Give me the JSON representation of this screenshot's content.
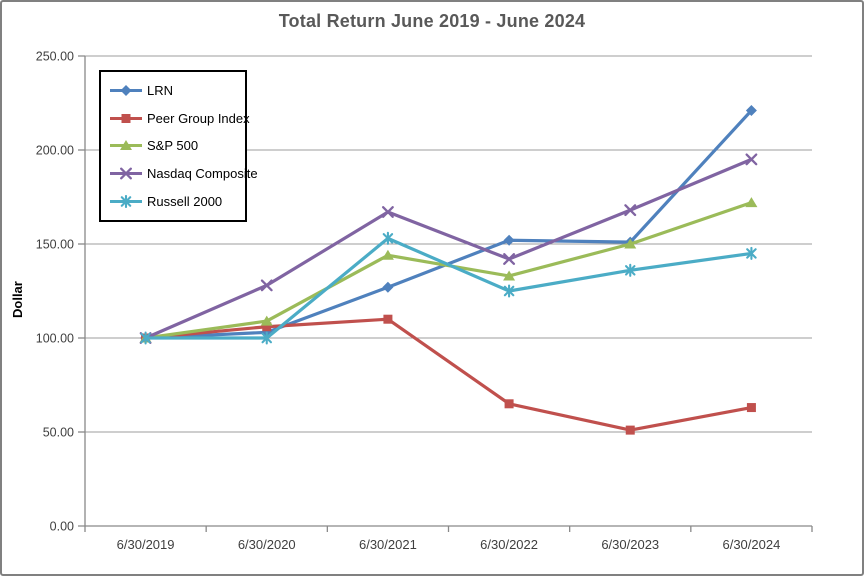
{
  "title": "Total Return June 2019 - June 2024",
  "chart_data": {
    "type": "line",
    "title": "Total Return June 2019 - June 2024",
    "ylabel": "Dollar",
    "xlabel": "",
    "ylim": [
      0,
      250
    ],
    "ytick_step": 50,
    "ytick_decimals": 2,
    "grid": true,
    "legend_position": "top-left",
    "categories": [
      "6/30/2019",
      "6/30/2020",
      "6/30/2021",
      "6/30/2022",
      "6/30/2023",
      "6/30/2024"
    ],
    "series": [
      {
        "name": "LRN",
        "color": "#4F81BD",
        "marker": "diamond",
        "values": [
          100,
          103,
          127,
          152,
          151,
          221
        ]
      },
      {
        "name": "Peer Group Index",
        "color": "#C0504D",
        "marker": "square",
        "values": [
          100,
          106,
          110,
          65,
          51,
          63
        ]
      },
      {
        "name": "S&P 500",
        "color": "#9BBB59",
        "marker": "triangle",
        "values": [
          100,
          109,
          144,
          133,
          150,
          172
        ]
      },
      {
        "name": "Nasdaq Composite",
        "color": "#8064A2",
        "marker": "x",
        "values": [
          100,
          128,
          167,
          142,
          168,
          195
        ]
      },
      {
        "name": "Russell 2000",
        "color": "#4BACC6",
        "marker": "asterisk",
        "values": [
          100,
          100,
          153,
          125,
          136,
          145
        ]
      }
    ]
  },
  "colors": {
    "background": "#FFFFFF",
    "frame_border": "#808080",
    "title_text": "#595959",
    "gridline": "#9D9D9D",
    "axis": "#898989",
    "tick_label": "#3F3F3F",
    "legend_border": "#000000",
    "legend_text": "#000000"
  }
}
